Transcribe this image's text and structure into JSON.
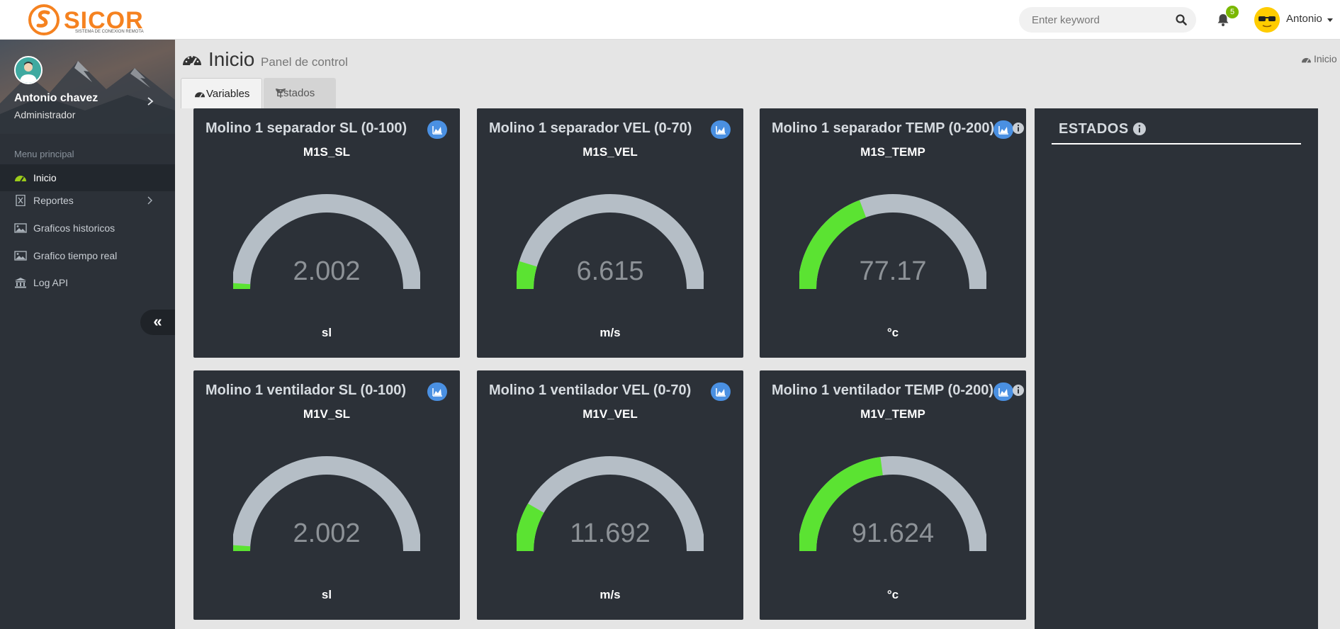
{
  "app": {
    "brand": "SICOR",
    "tagline": "SISTEMA DE CONEXION REMOTA"
  },
  "topbar": {
    "search_placeholder": "Enter keyword",
    "notification_count": "5",
    "username": "Antonio"
  },
  "sidebar": {
    "profile_name": "Antonio chavez",
    "profile_role": "Administrador",
    "menu_header": "Menu principal",
    "items": [
      {
        "label": "Inicio",
        "icon": "dashboard-icon",
        "active": true
      },
      {
        "label": "Reportes",
        "icon": "excel-file-icon",
        "has_submenu": true
      },
      {
        "label": "Graficos historicos",
        "icon": "image-icon"
      },
      {
        "label": "Grafico tiempo real",
        "icon": "image-icon"
      },
      {
        "label": "Log API",
        "icon": "bank-icon"
      }
    ],
    "collapse_label": "«"
  },
  "header": {
    "title": "Inicio",
    "subtitle": "Panel de control",
    "breadcrumb": "Inicio"
  },
  "tabs": [
    {
      "label": "Variables",
      "active": true
    },
    {
      "label": "Estados",
      "active": false
    }
  ],
  "gauges": [
    {
      "title": "Molino 1 separador SL (0-100)",
      "code": "M1S_SL",
      "value": "2.002",
      "unit": "sl",
      "min": 0,
      "max": 100
    },
    {
      "title": "Molino 1 separador VEL (0-70)",
      "code": "M1S_VEL",
      "value": "6.615",
      "unit": "m/s",
      "min": 0,
      "max": 70
    },
    {
      "title": "Molino 1 separador TEMP (0-200)",
      "code": "M1S_TEMP",
      "value": "77.17",
      "unit": "°c",
      "min": 0,
      "max": 200
    },
    {
      "title": "Molino 1 ventilador SL (0-100)",
      "code": "M1V_SL",
      "value": "2.002",
      "unit": "sl",
      "min": 0,
      "max": 100
    },
    {
      "title": "Molino 1 ventilador VEL (0-70)",
      "code": "M1V_VEL",
      "value": "11.692",
      "unit": "m/s",
      "min": 0,
      "max": 70
    },
    {
      "title": "Molino 1 ventilador TEMP (0-200)",
      "code": "M1V_TEMP",
      "value": "91.624",
      "unit": "°c",
      "min": 0,
      "max": 200
    }
  ],
  "estados": {
    "title": "ESTADOS"
  },
  "colors": {
    "gauge_fill": "#5be332",
    "gauge_track": "#b5bec6",
    "card_bg": "#2c3138",
    "sidebar_bg": "#2c3138",
    "accent_orange": "#f58220",
    "chart_button": "#4a90e2"
  }
}
